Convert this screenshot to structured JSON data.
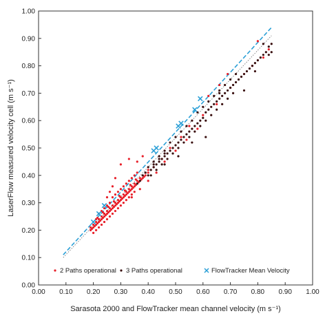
{
  "chart_data": {
    "type": "scatter",
    "title": "",
    "xlabel": "Sarasota 2000 and FlowTracker mean channel velocity (m s⁻¹)",
    "ylabel": "LaserFlow measured velocity cell (m s⁻¹)",
    "xlim": [
      0.0,
      1.0
    ],
    "ylim": [
      0.0,
      1.0
    ],
    "x_ticks": [
      "0.00",
      "0.10",
      "0.20",
      "0.30",
      "0.40",
      "0.50",
      "0.60",
      "0.70",
      "0.80",
      "0.90",
      "1.00"
    ],
    "y_ticks": [
      "0.00",
      "0.10",
      "0.20",
      "0.30",
      "0.40",
      "0.50",
      "0.60",
      "0.70",
      "0.80",
      "0.90",
      "1.00"
    ],
    "grid": false,
    "legend_position": "bottom",
    "series": [
      {
        "name": "2 Paths operational",
        "marker": "dot",
        "color": "#e8202a",
        "points": [
          [
            0.19,
            0.2
          ],
          [
            0.19,
            0.21
          ],
          [
            0.195,
            0.205
          ],
          [
            0.2,
            0.21
          ],
          [
            0.2,
            0.22
          ],
          [
            0.205,
            0.215
          ],
          [
            0.21,
            0.22
          ],
          [
            0.21,
            0.23
          ],
          [
            0.215,
            0.225
          ],
          [
            0.22,
            0.23
          ],
          [
            0.22,
            0.24
          ],
          [
            0.225,
            0.235
          ],
          [
            0.23,
            0.24
          ],
          [
            0.23,
            0.25
          ],
          [
            0.235,
            0.245
          ],
          [
            0.24,
            0.25
          ],
          [
            0.24,
            0.26
          ],
          [
            0.245,
            0.255
          ],
          [
            0.25,
            0.26
          ],
          [
            0.25,
            0.27
          ],
          [
            0.255,
            0.265
          ],
          [
            0.26,
            0.27
          ],
          [
            0.26,
            0.28
          ],
          [
            0.265,
            0.275
          ],
          [
            0.27,
            0.28
          ],
          [
            0.27,
            0.29
          ],
          [
            0.275,
            0.285
          ],
          [
            0.28,
            0.29
          ],
          [
            0.28,
            0.3
          ],
          [
            0.285,
            0.295
          ],
          [
            0.29,
            0.3
          ],
          [
            0.29,
            0.31
          ],
          [
            0.295,
            0.305
          ],
          [
            0.3,
            0.31
          ],
          [
            0.3,
            0.32
          ],
          [
            0.305,
            0.315
          ],
          [
            0.31,
            0.32
          ],
          [
            0.31,
            0.33
          ],
          [
            0.315,
            0.325
          ],
          [
            0.32,
            0.33
          ],
          [
            0.32,
            0.34
          ],
          [
            0.325,
            0.335
          ],
          [
            0.33,
            0.34
          ],
          [
            0.33,
            0.35
          ],
          [
            0.335,
            0.345
          ],
          [
            0.34,
            0.35
          ],
          [
            0.34,
            0.36
          ],
          [
            0.345,
            0.355
          ],
          [
            0.35,
            0.36
          ],
          [
            0.35,
            0.37
          ],
          [
            0.355,
            0.365
          ],
          [
            0.36,
            0.37
          ],
          [
            0.36,
            0.38
          ],
          [
            0.365,
            0.375
          ],
          [
            0.37,
            0.38
          ],
          [
            0.37,
            0.39
          ],
          [
            0.375,
            0.385
          ],
          [
            0.38,
            0.39
          ],
          [
            0.38,
            0.4
          ],
          [
            0.385,
            0.395
          ],
          [
            0.39,
            0.4
          ],
          [
            0.39,
            0.41
          ],
          [
            0.4,
            0.41
          ],
          [
            0.4,
            0.42
          ],
          [
            0.2,
            0.19
          ],
          [
            0.21,
            0.2
          ],
          [
            0.22,
            0.21
          ],
          [
            0.23,
            0.22
          ],
          [
            0.24,
            0.23
          ],
          [
            0.25,
            0.24
          ],
          [
            0.26,
            0.25
          ],
          [
            0.27,
            0.26
          ],
          [
            0.28,
            0.27
          ],
          [
            0.29,
            0.28
          ],
          [
            0.3,
            0.29
          ],
          [
            0.31,
            0.3
          ],
          [
            0.32,
            0.31
          ],
          [
            0.33,
            0.32
          ],
          [
            0.34,
            0.33
          ],
          [
            0.35,
            0.34
          ],
          [
            0.21,
            0.24
          ],
          [
            0.23,
            0.27
          ],
          [
            0.25,
            0.29
          ],
          [
            0.27,
            0.32
          ],
          [
            0.29,
            0.34
          ],
          [
            0.31,
            0.36
          ],
          [
            0.33,
            0.38
          ],
          [
            0.35,
            0.4
          ],
          [
            0.22,
            0.26
          ],
          [
            0.24,
            0.28
          ],
          [
            0.26,
            0.3
          ],
          [
            0.28,
            0.33
          ],
          [
            0.3,
            0.35
          ],
          [
            0.32,
            0.37
          ],
          [
            0.34,
            0.39
          ],
          [
            0.36,
            0.41
          ],
          [
            0.3,
            0.44
          ],
          [
            0.33,
            0.46
          ],
          [
            0.28,
            0.39
          ],
          [
            0.26,
            0.34
          ],
          [
            0.36,
            0.45
          ],
          [
            0.38,
            0.47
          ],
          [
            0.25,
            0.32
          ],
          [
            0.27,
            0.36
          ],
          [
            0.42,
            0.43
          ],
          [
            0.45,
            0.46
          ],
          [
            0.48,
            0.5
          ],
          [
            0.52,
            0.54
          ],
          [
            0.55,
            0.58
          ],
          [
            0.6,
            0.62
          ],
          [
            0.65,
            0.66
          ],
          [
            0.7,
            0.72
          ],
          [
            0.75,
            0.77
          ],
          [
            0.78,
            0.8
          ],
          [
            0.82,
            0.83
          ],
          [
            0.84,
            0.86
          ],
          [
            0.8,
            0.89
          ],
          [
            0.69,
            0.77
          ],
          [
            0.66,
            0.73
          ],
          [
            0.62,
            0.69
          ],
          [
            0.58,
            0.57
          ],
          [
            0.54,
            0.53
          ],
          [
            0.5,
            0.49
          ],
          [
            0.46,
            0.45
          ],
          [
            0.43,
            0.41
          ],
          [
            0.4,
            0.38
          ],
          [
            0.37,
            0.35
          ],
          [
            0.34,
            0.32
          ],
          [
            0.215,
            0.245
          ],
          [
            0.235,
            0.265
          ],
          [
            0.255,
            0.285
          ],
          [
            0.275,
            0.305
          ],
          [
            0.295,
            0.325
          ],
          [
            0.315,
            0.345
          ],
          [
            0.335,
            0.365
          ],
          [
            0.355,
            0.385
          ]
        ]
      },
      {
        "name": "3 Paths operational",
        "marker": "dot",
        "color": "#3a1010",
        "points": [
          [
            0.4,
            0.4
          ],
          [
            0.41,
            0.42
          ],
          [
            0.42,
            0.43
          ],
          [
            0.43,
            0.44
          ],
          [
            0.44,
            0.45
          ],
          [
            0.45,
            0.46
          ],
          [
            0.46,
            0.47
          ],
          [
            0.47,
            0.48
          ],
          [
            0.48,
            0.49
          ],
          [
            0.49,
            0.5
          ],
          [
            0.5,
            0.51
          ],
          [
            0.51,
            0.52
          ],
          [
            0.52,
            0.53
          ],
          [
            0.53,
            0.54
          ],
          [
            0.54,
            0.55
          ],
          [
            0.55,
            0.56
          ],
          [
            0.56,
            0.57
          ],
          [
            0.57,
            0.58
          ],
          [
            0.58,
            0.59
          ],
          [
            0.59,
            0.6
          ],
          [
            0.6,
            0.61
          ],
          [
            0.61,
            0.63
          ],
          [
            0.62,
            0.64
          ],
          [
            0.63,
            0.65
          ],
          [
            0.64,
            0.66
          ],
          [
            0.65,
            0.67
          ],
          [
            0.66,
            0.68
          ],
          [
            0.67,
            0.69
          ],
          [
            0.68,
            0.7
          ],
          [
            0.69,
            0.71
          ],
          [
            0.7,
            0.72
          ],
          [
            0.71,
            0.73
          ],
          [
            0.72,
            0.74
          ],
          [
            0.73,
            0.75
          ],
          [
            0.74,
            0.76
          ],
          [
            0.75,
            0.77
          ],
          [
            0.76,
            0.78
          ],
          [
            0.77,
            0.79
          ],
          [
            0.78,
            0.8
          ],
          [
            0.79,
            0.81
          ],
          [
            0.8,
            0.82
          ],
          [
            0.81,
            0.83
          ],
          [
            0.82,
            0.84
          ],
          [
            0.83,
            0.85
          ],
          [
            0.84,
            0.87
          ],
          [
            0.85,
            0.88
          ],
          [
            0.85,
            0.85
          ],
          [
            0.84,
            0.84
          ],
          [
            0.41,
            0.4
          ],
          [
            0.43,
            0.42
          ],
          [
            0.45,
            0.44
          ],
          [
            0.47,
            0.46
          ],
          [
            0.49,
            0.48
          ],
          [
            0.51,
            0.5
          ],
          [
            0.53,
            0.52
          ],
          [
            0.55,
            0.54
          ],
          [
            0.57,
            0.56
          ],
          [
            0.59,
            0.58
          ],
          [
            0.61,
            0.6
          ],
          [
            0.63,
            0.62
          ],
          [
            0.65,
            0.64
          ],
          [
            0.67,
            0.66
          ],
          [
            0.69,
            0.68
          ],
          [
            0.71,
            0.7
          ],
          [
            0.42,
            0.45
          ],
          [
            0.44,
            0.47
          ],
          [
            0.46,
            0.49
          ],
          [
            0.48,
            0.52
          ],
          [
            0.5,
            0.54
          ],
          [
            0.52,
            0.56
          ],
          [
            0.54,
            0.58
          ],
          [
            0.56,
            0.6
          ],
          [
            0.58,
            0.63
          ],
          [
            0.6,
            0.65
          ],
          [
            0.62,
            0.67
          ],
          [
            0.64,
            0.69
          ],
          [
            0.66,
            0.71
          ],
          [
            0.68,
            0.73
          ],
          [
            0.7,
            0.75
          ],
          [
            0.72,
            0.77
          ],
          [
            0.75,
            0.71
          ],
          [
            0.79,
            0.78
          ],
          [
            0.82,
            0.88
          ],
          [
            0.66,
            0.7
          ],
          [
            0.61,
            0.54
          ],
          [
            0.56,
            0.52
          ],
          [
            0.51,
            0.47
          ],
          [
            0.46,
            0.44
          ],
          [
            0.38,
            0.4
          ],
          [
            0.39,
            0.41
          ],
          [
            0.37,
            0.38
          ],
          [
            0.36,
            0.37
          ],
          [
            0.4,
            0.43
          ],
          [
            0.42,
            0.44
          ],
          [
            0.44,
            0.46
          ],
          [
            0.46,
            0.48
          ]
        ]
      },
      {
        "name": "FlowTracker Mean Velocity",
        "marker": "x",
        "color": "#2a9fd6",
        "points": [
          [
            0.2,
            0.23
          ],
          [
            0.22,
            0.26
          ],
          [
            0.24,
            0.29
          ],
          [
            0.42,
            0.49
          ],
          [
            0.43,
            0.5
          ],
          [
            0.51,
            0.58
          ],
          [
            0.52,
            0.59
          ],
          [
            0.57,
            0.64
          ],
          [
            0.59,
            0.68
          ]
        ]
      }
    ],
    "fit_lines": [
      {
        "style": "dashed",
        "color": "#2a9fd6",
        "from": [
          0.09,
          0.11
        ],
        "to": [
          0.85,
          0.94
        ]
      },
      {
        "style": "dotted",
        "color": "#777777",
        "from": [
          0.09,
          0.1
        ],
        "to": [
          0.85,
          0.91
        ]
      }
    ]
  }
}
